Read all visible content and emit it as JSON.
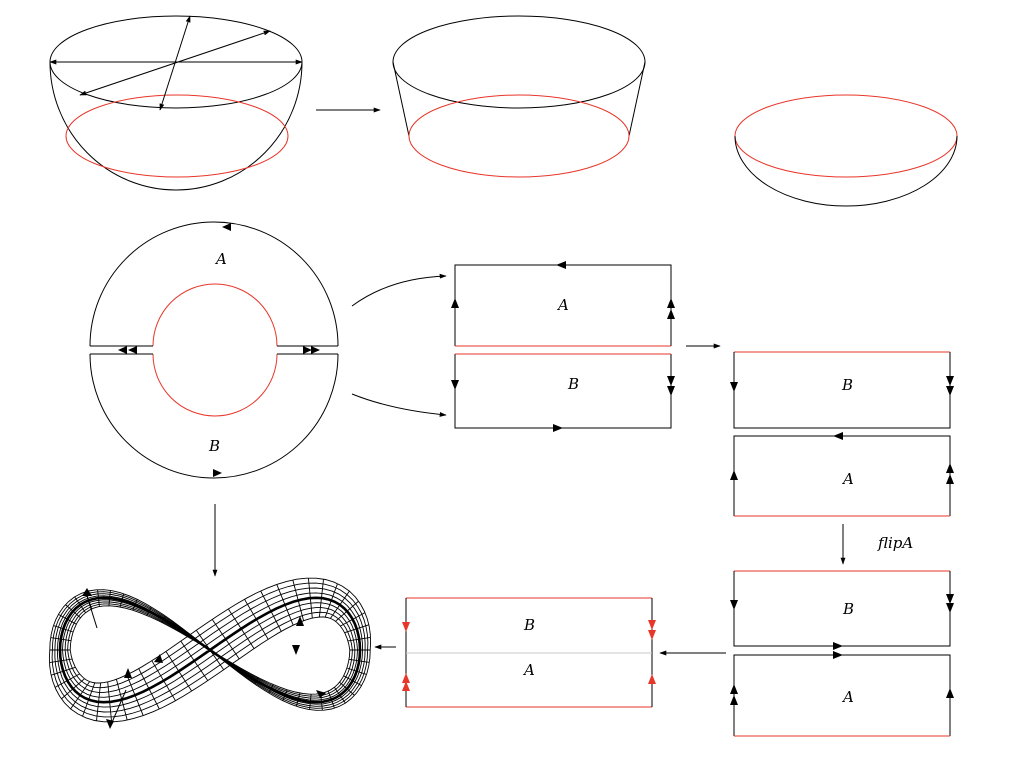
{
  "diagram": {
    "labels": {
      "disk_top": "A",
      "disk_bottom": "B",
      "rect1_top": "A",
      "rect1_bottom": "B",
      "rect2_top": "B",
      "rect2_bottom": "A",
      "flip_caption": "flipA",
      "rect3_top": "B",
      "rect3_bottom": "A",
      "merged_top": "B",
      "merged_bottom": "A"
    },
    "colors": {
      "line": "#000000",
      "highlight": "#e8362a",
      "seam": "#c9c9c9"
    }
  }
}
